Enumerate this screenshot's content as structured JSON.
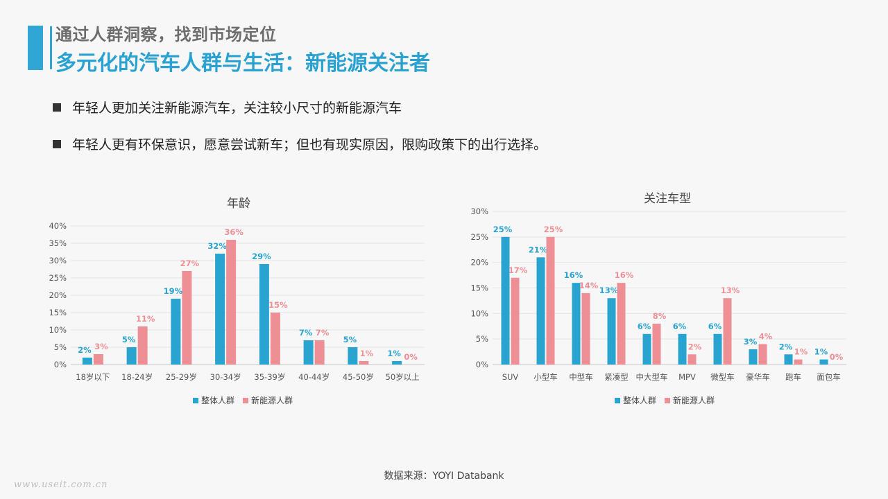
{
  "header": {
    "subtitle": "通过人群洞察，找到市场定位",
    "title": "多元化的汽车人群与生活：新能源关注者"
  },
  "bullets": [
    "年轻人更加关注新能源汽车，关注较小尺寸的新能源汽车",
    "年轻人更有环保意识，愿意尝试新车；但也有现实原因，限购政策下的出行选择。"
  ],
  "colors": {
    "blue": "#29a4d0",
    "pink": "#ee8f95",
    "accent": "#2fa6d3"
  },
  "chart_data": [
    {
      "type": "bar",
      "title": "年龄",
      "categories": [
        "18岁以下",
        "18-24岁",
        "25-29岁",
        "30-34岁",
        "35-39岁",
        "40-44岁",
        "45-50岁",
        "50岁以上"
      ],
      "series": [
        {
          "name": "整体人群",
          "values": [
            2,
            5,
            19,
            32,
            29,
            7,
            5,
            1
          ]
        },
        {
          "name": "新能源人群",
          "values": [
            3,
            11,
            27,
            36,
            15,
            7,
            1,
            0
          ]
        }
      ],
      "ylim": [
        0,
        40
      ],
      "yticks": [
        "0%",
        "5%",
        "10%",
        "15%",
        "20%",
        "25%",
        "30%",
        "35%",
        "40%"
      ],
      "grid": true,
      "legend": "bottom"
    },
    {
      "type": "bar",
      "title": "关注车型",
      "categories": [
        "SUV",
        "小型车",
        "中型车",
        "紧凑型",
        "中大型车",
        "MPV",
        "微型车",
        "豪华车",
        "跑车",
        "面包车"
      ],
      "series": [
        {
          "name": "整体人群",
          "values": [
            25,
            21,
            16,
            13,
            6,
            6,
            6,
            3,
            2,
            1
          ]
        },
        {
          "name": "新能源人群",
          "values": [
            17,
            25,
            14,
            16,
            8,
            2,
            13,
            4,
            1,
            0
          ]
        }
      ],
      "ylim": [
        0,
        30
      ],
      "yticks": [
        "0%",
        "5%",
        "10%",
        "15%",
        "20%",
        "25%",
        "30%"
      ],
      "grid": true,
      "legend": "bottom"
    }
  ],
  "source": "数据来源：YOYI  Databank",
  "watermark": "www.useit.com.cn"
}
